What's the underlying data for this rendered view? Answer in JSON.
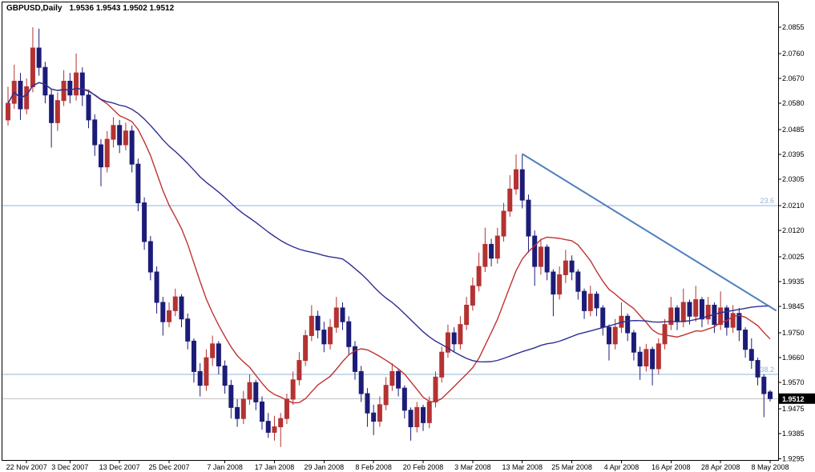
{
  "window": {
    "background": "#ffffff"
  },
  "header": {
    "title": "GBPUSD,Daily",
    "ohlc": "1.9536 1.9543 1.9502 1.9512"
  },
  "price_tag": {
    "value": "1.9512",
    "bg": "#000000",
    "fg": "#ffffff"
  },
  "chart_data": {
    "type": "candlestick",
    "symbol": "GBPUSD",
    "timeframe": "Daily",
    "quote": {
      "open": 1.9536,
      "high": 1.9543,
      "low": 1.9502,
      "close": 1.9512
    },
    "scale": {
      "top_value": 2.0945,
      "bottom_value": 1.929
    },
    "y_axis": {
      "labels": [
        "2.0855",
        "2.0760",
        "2.0670",
        "2.0580",
        "2.0485",
        "2.0395",
        "2.0305",
        "2.0210",
        "2.0120",
        "2.0025",
        "1.9935",
        "1.9845",
        "1.9750",
        "1.9660",
        "1.9570",
        "1.9475",
        "1.9385",
        "1.9295"
      ]
    },
    "x_axis": {
      "labels": [
        "22 Nov 2007",
        "3 Dec 2007",
        "13 Dec 2007",
        "25 Dec 2007",
        "7 Jan 2008",
        "17 Jan 2008",
        "29 Jan 2008",
        "8 Feb 2008",
        "20 Feb 2008",
        "3 Mar 2008",
        "13 Mar 2008",
        "25 Mar 2008",
        "4 Apr 2008",
        "16 Apr 2008",
        "28 Apr 2008",
        "8 May 2008"
      ],
      "indices": [
        3,
        10,
        18,
        26,
        35,
        43,
        51,
        59,
        67,
        75,
        83,
        91,
        99,
        107,
        115,
        123
      ]
    },
    "colors": {
      "background": "#ffffff",
      "frame": "#000000",
      "bull": "#b43232",
      "bear": "#1c1c78",
      "fib": "#8fb4d9",
      "axis_text": "#000000"
    },
    "candles": [
      [
        2.052,
        2.064,
        2.05,
        2.058
      ],
      [
        2.058,
        2.072,
        2.056,
        2.066
      ],
      [
        2.066,
        2.069,
        2.052,
        2.056
      ],
      [
        2.056,
        2.067,
        2.054,
        2.064
      ],
      [
        2.064,
        2.0855,
        2.062,
        2.078
      ],
      [
        2.078,
        2.085,
        2.068,
        2.071
      ],
      [
        2.071,
        2.073,
        2.058,
        2.061
      ],
      [
        2.061,
        2.063,
        2.042,
        2.051
      ],
      [
        2.051,
        2.062,
        2.048,
        2.059
      ],
      [
        2.059,
        2.07,
        2.057,
        2.066
      ],
      [
        2.066,
        2.069,
        2.058,
        2.061
      ],
      [
        2.061,
        2.076,
        2.059,
        2.069
      ],
      [
        2.069,
        2.071,
        2.057,
        2.061
      ],
      [
        2.061,
        2.063,
        2.049,
        2.052
      ],
      [
        2.052,
        2.054,
        2.039,
        2.043
      ],
      [
        2.043,
        2.045,
        2.028,
        2.035
      ],
      [
        2.035,
        2.048,
        2.033,
        2.045
      ],
      [
        2.045,
        2.053,
        2.042,
        2.05
      ],
      [
        2.05,
        2.052,
        2.04,
        2.043
      ],
      [
        2.043,
        2.051,
        2.041,
        2.048
      ],
      [
        2.048,
        2.05,
        2.033,
        2.036
      ],
      [
        2.036,
        2.038,
        2.019,
        2.022
      ],
      [
        2.022,
        2.024,
        2.005,
        2.008
      ],
      [
        2.008,
        2.01,
        1.994,
        1.997
      ],
      [
        1.997,
        1.999,
        1.982,
        1.986
      ],
      [
        1.986,
        1.988,
        1.974,
        1.979
      ],
      [
        1.979,
        1.986,
        1.977,
        1.983
      ],
      [
        1.983,
        1.991,
        1.981,
        1.988
      ],
      [
        1.988,
        1.989,
        1.977,
        1.98
      ],
      [
        1.98,
        1.982,
        1.969,
        1.972
      ],
      [
        1.972,
        1.973,
        1.957,
        1.961
      ],
      [
        1.961,
        1.964,
        1.952,
        1.956
      ],
      [
        1.956,
        1.969,
        1.954,
        1.966
      ],
      [
        1.966,
        1.974,
        1.963,
        1.971
      ],
      [
        1.971,
        1.972,
        1.96,
        1.963
      ],
      [
        1.963,
        1.965,
        1.953,
        1.956
      ],
      [
        1.956,
        1.958,
        1.944,
        1.948
      ],
      [
        1.948,
        1.951,
        1.941,
        1.944
      ],
      [
        1.944,
        1.954,
        1.942,
        1.951
      ],
      [
        1.951,
        1.96,
        1.949,
        1.957
      ],
      [
        1.957,
        1.958,
        1.947,
        1.95
      ],
      [
        1.95,
        1.952,
        1.94,
        1.943
      ],
      [
        1.943,
        1.946,
        1.937,
        1.939
      ],
      [
        1.939,
        1.945,
        1.936,
        1.941
      ],
      [
        1.941,
        1.946,
        1.9337,
        1.944
      ],
      [
        1.944,
        1.953,
        1.942,
        1.951
      ],
      [
        1.951,
        1.961,
        1.949,
        1.958
      ],
      [
        1.958,
        1.968,
        1.956,
        1.965
      ],
      [
        1.965,
        1.976,
        1.963,
        1.974
      ],
      [
        1.974,
        1.985,
        1.972,
        1.981
      ],
      [
        1.981,
        1.983,
        1.973,
        1.976
      ],
      [
        1.976,
        1.979,
        1.968,
        1.971
      ],
      [
        1.971,
        1.98,
        1.969,
        1.977
      ],
      [
        1.977,
        1.988,
        1.975,
        1.984
      ],
      [
        1.984,
        1.986,
        1.976,
        1.979
      ],
      [
        1.979,
        1.981,
        1.967,
        1.97
      ],
      [
        1.97,
        1.972,
        1.958,
        1.961
      ],
      [
        1.961,
        1.963,
        1.95,
        1.953
      ],
      [
        1.953,
        1.955,
        1.941,
        1.946
      ],
      [
        1.946,
        1.949,
        1.938,
        1.943
      ],
      [
        1.943,
        1.952,
        1.941,
        1.949
      ],
      [
        1.949,
        1.959,
        1.947,
        1.956
      ],
      [
        1.956,
        1.964,
        1.954,
        1.961
      ],
      [
        1.961,
        1.962,
        1.952,
        1.955
      ],
      [
        1.955,
        1.956,
        1.944,
        1.947
      ],
      [
        1.947,
        1.948,
        1.936,
        1.941
      ],
      [
        1.941,
        1.95,
        1.939,
        1.948
      ],
      [
        1.948,
        1.949,
        1.9395,
        1.9425
      ],
      [
        1.9425,
        1.952,
        1.9405,
        1.95
      ],
      [
        1.95,
        1.961,
        1.948,
        1.959
      ],
      [
        1.959,
        1.97,
        1.957,
        1.968
      ],
      [
        1.968,
        1.978,
        1.966,
        1.975
      ],
      [
        1.975,
        1.977,
        1.968,
        1.971
      ],
      [
        1.971,
        1.981,
        1.969,
        1.978
      ],
      [
        1.978,
        1.988,
        1.976,
        1.985
      ],
      [
        1.985,
        1.995,
        1.983,
        1.992
      ],
      [
        1.992,
        2.004,
        1.99,
        1.999
      ],
      [
        1.999,
        2.013,
        1.997,
        2.007
      ],
      [
        2.007,
        2.009,
        1.999,
        2.002
      ],
      [
        2.002,
        2.013,
        2.0,
        2.01
      ],
      [
        2.01,
        2.022,
        2.008,
        2.019
      ],
      [
        2.019,
        2.032,
        2.017,
        2.027
      ],
      [
        2.027,
        2.0395,
        2.025,
        2.034
      ],
      [
        2.034,
        2.0397,
        2.02,
        2.023
      ],
      [
        2.023,
        2.025,
        2.004,
        2.01
      ],
      [
        2.01,
        2.012,
        1.992,
        1.999
      ],
      [
        1.999,
        2.009,
        1.996,
        2.006
      ],
      [
        2.006,
        2.007,
        1.994,
        1.997
      ],
      [
        1.997,
        1.998,
        1.981,
        1.989
      ],
      [
        1.989,
        1.999,
        1.987,
        1.996
      ],
      [
        1.996,
        2.005,
        1.993,
        2.001
      ],
      [
        2.001,
        2.003,
        1.994,
        1.997
      ],
      [
        1.997,
        1.998,
        1.987,
        1.99
      ],
      [
        1.99,
        1.991,
        1.98,
        1.983
      ],
      [
        1.983,
        1.992,
        1.981,
        1.989
      ],
      [
        1.989,
        1.99,
        1.981,
        1.984
      ],
      [
        1.984,
        1.985,
        1.974,
        1.977
      ],
      [
        1.977,
        1.978,
        1.965,
        1.971
      ],
      [
        1.971,
        1.98,
        1.969,
        1.977
      ],
      [
        1.977,
        1.986,
        1.975,
        1.981
      ],
      [
        1.981,
        1.982,
        1.972,
        1.975
      ],
      [
        1.975,
        1.976,
        1.965,
        1.968
      ],
      [
        1.968,
        1.97,
        1.958,
        1.963
      ],
      [
        1.963,
        1.971,
        1.961,
        1.969
      ],
      [
        1.969,
        1.97,
        1.956,
        1.962
      ],
      [
        1.962,
        1.973,
        1.96,
        1.971
      ],
      [
        1.971,
        1.98,
        1.969,
        1.978
      ],
      [
        1.978,
        1.988,
        1.976,
        1.984
      ],
      [
        1.984,
        1.985,
        1.976,
        1.979
      ],
      [
        1.979,
        1.991,
        1.977,
        1.986
      ],
      [
        1.986,
        1.987,
        1.978,
        1.981
      ],
      [
        1.981,
        1.992,
        1.979,
        1.987
      ],
      [
        1.987,
        1.988,
        1.977,
        1.98
      ],
      [
        1.98,
        1.988,
        1.978,
        1.985
      ],
      [
        1.985,
        1.986,
        1.975,
        1.978
      ],
      [
        1.978,
        1.99,
        1.976,
        1.984
      ],
      [
        1.984,
        1.985,
        1.974,
        1.977
      ],
      [
        1.977,
        1.985,
        1.975,
        1.982
      ],
      [
        1.982,
        1.984,
        1.972,
        1.976
      ],
      [
        1.976,
        1.977,
        1.966,
        1.969
      ],
      [
        1.969,
        1.973,
        1.962,
        1.965
      ],
      [
        1.965,
        1.966,
        1.956,
        1.959
      ],
      [
        1.959,
        1.96,
        1.9445,
        1.953
      ],
      [
        1.9536,
        1.9543,
        1.9502,
        1.9512
      ]
    ],
    "moving_averages": [
      {
        "name": "fast",
        "period": 13,
        "color": "#c03232"
      },
      {
        "name": "slow",
        "period": 55,
        "color": "#2d2d96"
      }
    ],
    "trendline": {
      "from_index": 83,
      "from_price": 2.0397,
      "to_index": 124,
      "to_price": 1.983,
      "color": "#4f81bd",
      "width": 2
    },
    "fib_levels": [
      {
        "label": "23.6",
        "value": 2.021
      },
      {
        "label": "38.2",
        "value": 1.96
      }
    ],
    "current_price_line": {
      "value": 1.9512,
      "color": "#c4c4c4"
    }
  }
}
